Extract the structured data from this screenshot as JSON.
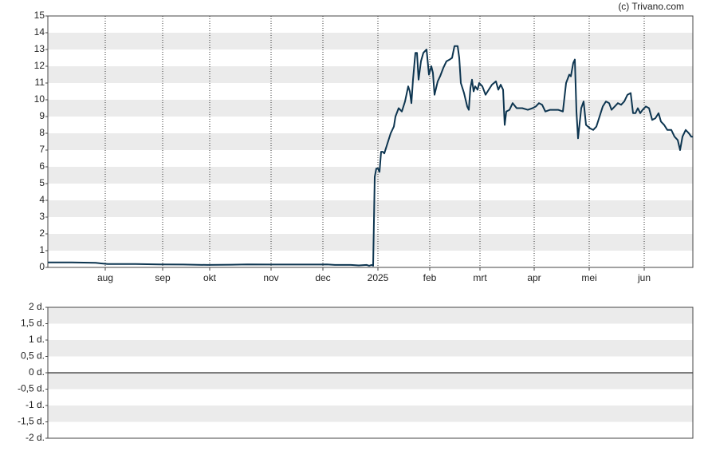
{
  "attribution": "(c) Trivano.com",
  "chart_data": [
    {
      "type": "line",
      "x": [
        0,
        30,
        60,
        75,
        110,
        140,
        170,
        200,
        230,
        250,
        280,
        310,
        340,
        350,
        360,
        380,
        390,
        400,
        403,
        406,
        408,
        410,
        412,
        414,
        416,
        418,
        420,
        422,
        426,
        430,
        434,
        436,
        440,
        444,
        448,
        452,
        454,
        456,
        458,
        461,
        463,
        465,
        468,
        471,
        475,
        478,
        481,
        483,
        485,
        489,
        492,
        496,
        500,
        504,
        507,
        510,
        514,
        516,
        518,
        522,
        526,
        528,
        530,
        532,
        534,
        536,
        539,
        541,
        545,
        549,
        553,
        557,
        562,
        565,
        568,
        571,
        573,
        575,
        579,
        583,
        588,
        595,
        602,
        608,
        612,
        616,
        620,
        624,
        630,
        640,
        646,
        650,
        654,
        656,
        659,
        661,
        663,
        665,
        669,
        672,
        675,
        680,
        684,
        688,
        692,
        696,
        700,
        704,
        707,
        711,
        715,
        719,
        723,
        727,
        731,
        734,
        737,
        740,
        743,
        746,
        750,
        754,
        758,
        762,
        766,
        769,
        773,
        777,
        782,
        786,
        790,
        793,
        796,
        800,
        804,
        807,
        809
      ],
      "series": [
        {
          "color": "#0d3550",
          "values": [
            0.3,
            0.3,
            0.27,
            0.2,
            0.2,
            0.18,
            0.17,
            0.15,
            0.16,
            0.18,
            0.17,
            0.17,
            0.17,
            0.18,
            0.15,
            0.15,
            0.12,
            0.15,
            0.1,
            0.15,
            0.1,
            5.4,
            5.9,
            5.9,
            5.7,
            6.9,
            6.9,
            6.8,
            7.4,
            8.0,
            8.4,
            9.0,
            9.5,
            9.3,
            9.9,
            10.8,
            10.5,
            9.8,
            11.2,
            12.8,
            12.8,
            11.2,
            12.3,
            12.8,
            13.0,
            11.5,
            12.0,
            11.6,
            10.3,
            11.1,
            11.4,
            11.9,
            12.3,
            12.4,
            12.5,
            13.2,
            13.2,
            12.5,
            11.0,
            10.4,
            9.6,
            9.4,
            10.7,
            11.2,
            10.5,
            10.8,
            10.6,
            11.0,
            10.8,
            10.3,
            10.6,
            10.9,
            11.1,
            10.6,
            10.9,
            10.6,
            8.5,
            9.3,
            9.4,
            9.8,
            9.5,
            9.5,
            9.4,
            9.5,
            9.6,
            9.8,
            9.7,
            9.3,
            9.4,
            9.4,
            9.3,
            11.0,
            11.5,
            11.4,
            12.2,
            12.4,
            9.3,
            7.7,
            9.5,
            9.9,
            8.5,
            8.3,
            8.2,
            8.4,
            9.0,
            9.6,
            9.9,
            9.8,
            9.4,
            9.6,
            9.8,
            9.7,
            9.9,
            10.3,
            10.4,
            9.2,
            9.2,
            9.5,
            9.2,
            9.4,
            9.6,
            9.5,
            8.8,
            8.9,
            9.2,
            8.7,
            8.5,
            8.2,
            8.2,
            7.8,
            7.6,
            7.0,
            7.8,
            8.2,
            8.0,
            7.8,
            7.8
          ]
        }
      ],
      "xlim": [
        0,
        809
      ],
      "xticks": [
        {
          "value": 72,
          "label": "aug"
        },
        {
          "value": 144,
          "label": "sep"
        },
        {
          "value": 203,
          "label": "okt"
        },
        {
          "value": 280,
          "label": "nov"
        },
        {
          "value": 345,
          "label": "dec"
        },
        {
          "value": 414,
          "label": "2025"
        },
        {
          "value": 479,
          "label": "feb"
        },
        {
          "value": 542,
          "label": "mrt"
        },
        {
          "value": 610,
          "label": "apr"
        },
        {
          "value": 679,
          "label": "mei"
        },
        {
          "value": 748,
          "label": "jun"
        }
      ],
      "ylim": [
        0,
        15
      ],
      "yticks": [
        0,
        1,
        2,
        3,
        4,
        5,
        6,
        7,
        8,
        9,
        10,
        11,
        12,
        13,
        14,
        15
      ],
      "grid": true
    },
    {
      "type": "line",
      "ylim": [
        -2,
        2
      ],
      "yticks": [
        {
          "value": 2,
          "label": "2 d."
        },
        {
          "value": 1.5,
          "label": "1,5 d."
        },
        {
          "value": 1,
          "label": "1 d."
        },
        {
          "value": 0.5,
          "label": "0,5 d."
        },
        {
          "value": 0,
          "label": "0 d."
        },
        {
          "value": -0.5,
          "label": "-0,5 d."
        },
        {
          "value": -1,
          "label": "-1 d."
        },
        {
          "value": -1.5,
          "label": "-1,5 d."
        },
        {
          "value": -2,
          "label": "-2 d."
        }
      ],
      "zero_line": true
    }
  ]
}
